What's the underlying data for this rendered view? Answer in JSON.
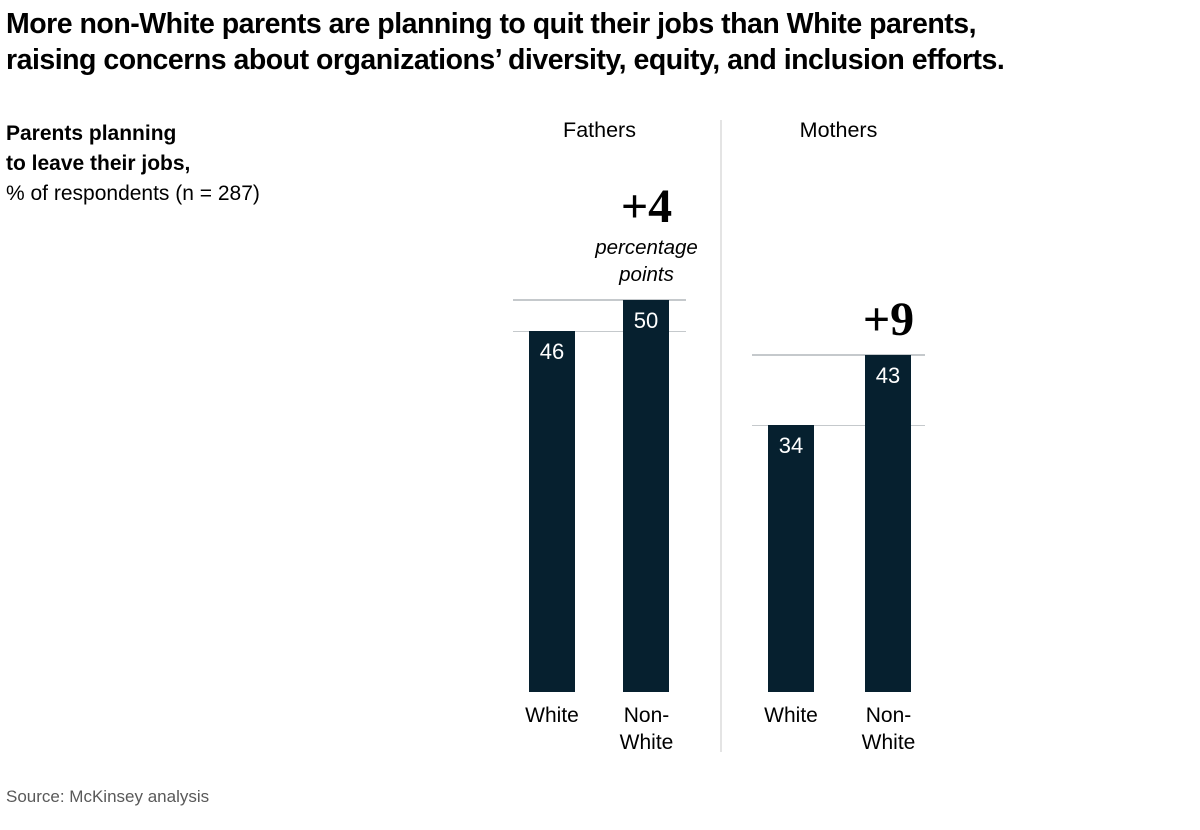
{
  "header": {
    "title_lines": [
      "More non-White parents are planning to quit their jobs than White parents,",
      "raising concerns about organizations’ diversity, equity, and inclusion efforts."
    ]
  },
  "chart_label": {
    "bold_lines": [
      "Parents planning",
      "to leave their jobs,"
    ],
    "unit_line": "% of respondents (n = 287)"
  },
  "source_line": "Source: McKinsey analysis",
  "colors": {
    "bar": "#06202f",
    "gridline": "#c5c9cc",
    "divider": "#e4e4e4",
    "value_text": "#ffffff",
    "source_text": "#595959",
    "title_text": "#000000"
  },
  "chart_data": {
    "type": "bar",
    "title": "Parents planning to leave their jobs, % of respondents (n = 287)",
    "ylabel": "% of respondents",
    "ylim": [
      0,
      50
    ],
    "grid": "per-group reference lines at each bar top",
    "legend": "none",
    "groups": [
      {
        "label": "Fathers",
        "categories": [
          [
            "White"
          ],
          [
            "Non-",
            "White"
          ]
        ],
        "values": [
          46,
          50
        ],
        "delta": "+4",
        "delta_caption_lines": [
          "percentage",
          "points"
        ]
      },
      {
        "label": "Mothers",
        "categories": [
          [
            "White"
          ],
          [
            "Non-",
            "White"
          ]
        ],
        "values": [
          34,
          43
        ],
        "delta": "+9",
        "delta_caption_lines": []
      }
    ]
  }
}
